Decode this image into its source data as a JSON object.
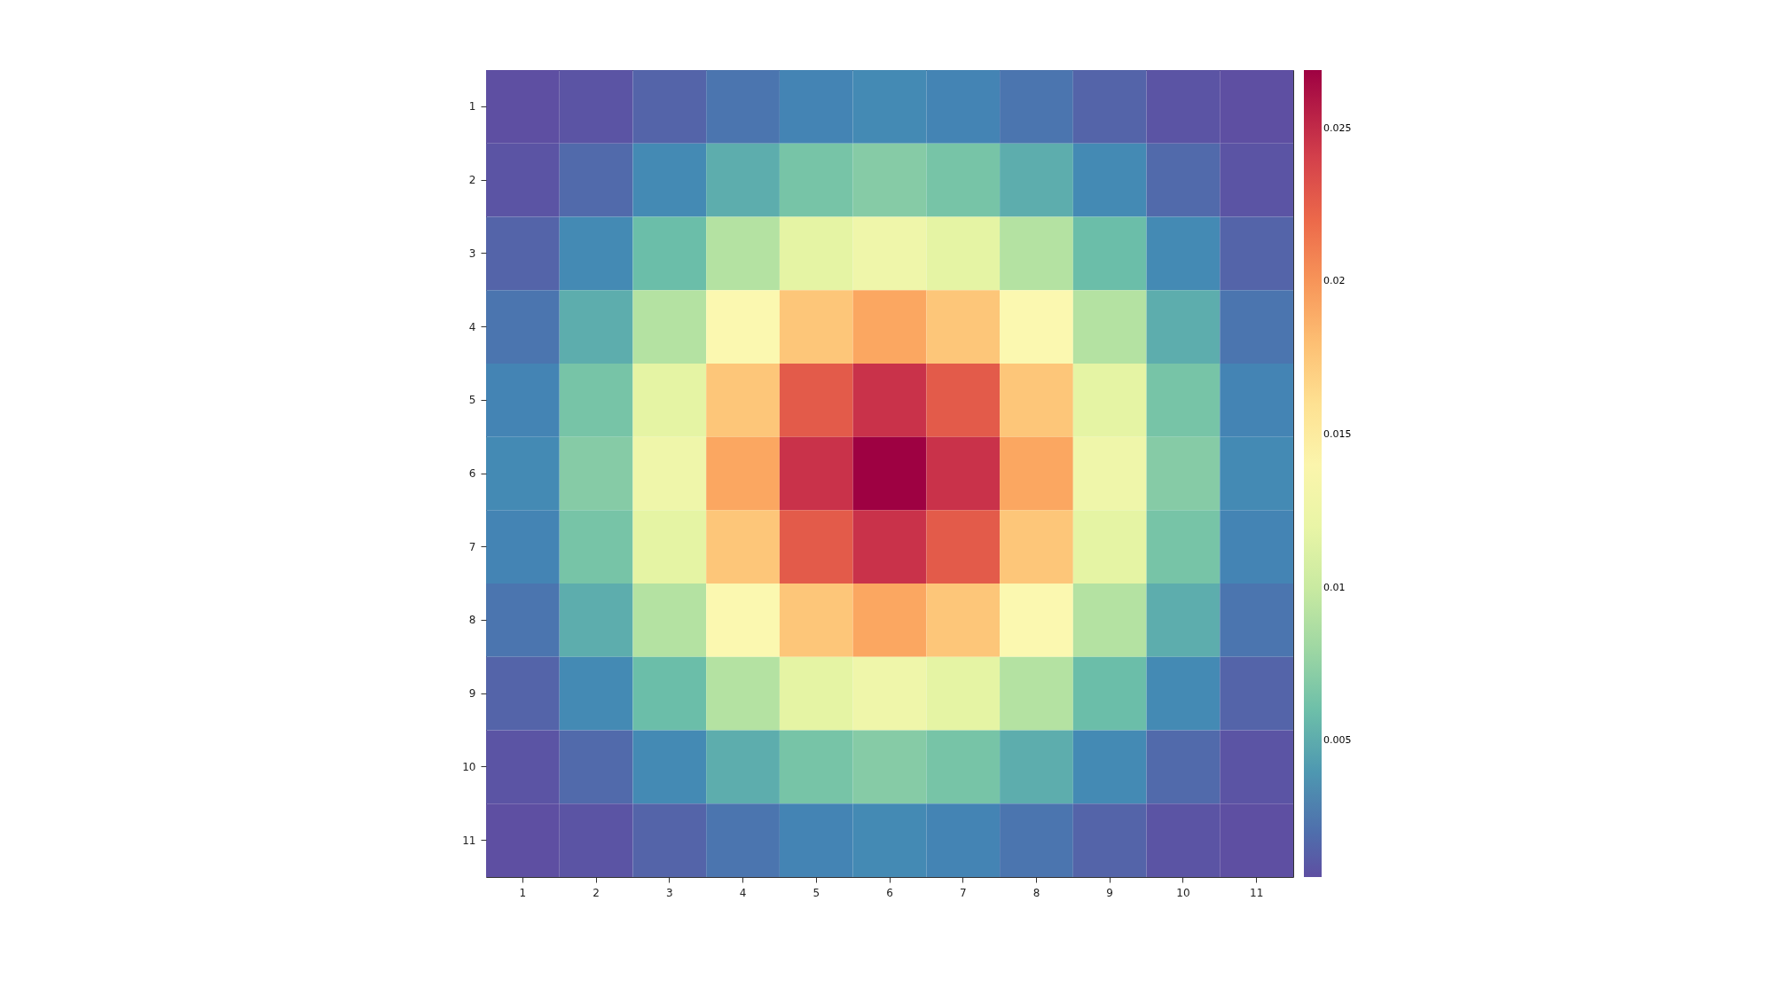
{
  "chart_data": {
    "type": "heatmap",
    "categories": [
      "1",
      "2",
      "3",
      "4",
      "5",
      "6",
      "7",
      "8",
      "9",
      "10",
      "11"
    ],
    "y_categories": [
      "1",
      "2",
      "3",
      "4",
      "5",
      "6",
      "7",
      "8",
      "9",
      "10",
      "11"
    ],
    "cells": [
      [
        0.00055,
        0.0008,
        0.0015,
        0.0023,
        0.003,
        0.0033,
        0.003,
        0.0023,
        0.0015,
        0.0008,
        0.00055
      ],
      [
        0.0008,
        0.0018,
        0.0033,
        0.005,
        0.0064,
        0.007,
        0.0064,
        0.005,
        0.0033,
        0.0018,
        0.0008
      ],
      [
        0.0015,
        0.0033,
        0.0059,
        0.009,
        0.0116,
        0.0126,
        0.0116,
        0.009,
        0.0059,
        0.0033,
        0.0015
      ],
      [
        0.0023,
        0.005,
        0.009,
        0.0137,
        0.0176,
        0.0192,
        0.0176,
        0.0137,
        0.009,
        0.005,
        0.0023
      ],
      [
        0.003,
        0.0064,
        0.0116,
        0.0176,
        0.0227,
        0.0247,
        0.0227,
        0.0176,
        0.0116,
        0.0064,
        0.003
      ],
      [
        0.0033,
        0.007,
        0.0126,
        0.0192,
        0.0247,
        0.0269,
        0.0247,
        0.0192,
        0.0126,
        0.007,
        0.0033
      ],
      [
        0.003,
        0.0064,
        0.0116,
        0.0176,
        0.0227,
        0.0247,
        0.0227,
        0.0176,
        0.0116,
        0.0064,
        0.003
      ],
      [
        0.0023,
        0.005,
        0.009,
        0.0137,
        0.0176,
        0.0192,
        0.0176,
        0.0137,
        0.009,
        0.005,
        0.0023
      ],
      [
        0.0015,
        0.0033,
        0.0059,
        0.009,
        0.0116,
        0.0126,
        0.0116,
        0.009,
        0.0059,
        0.0033,
        0.0015
      ],
      [
        0.0008,
        0.0018,
        0.0033,
        0.005,
        0.0064,
        0.007,
        0.0064,
        0.005,
        0.0033,
        0.0018,
        0.0008
      ],
      [
        0.00055,
        0.0008,
        0.0015,
        0.0023,
        0.003,
        0.0033,
        0.003,
        0.0023,
        0.0015,
        0.0008,
        0.00055
      ]
    ],
    "clim": [
      0.00055,
      0.0269
    ],
    "cticks": [
      0.005,
      0.01,
      0.015,
      0.02,
      0.025
    ],
    "grid": false
  }
}
